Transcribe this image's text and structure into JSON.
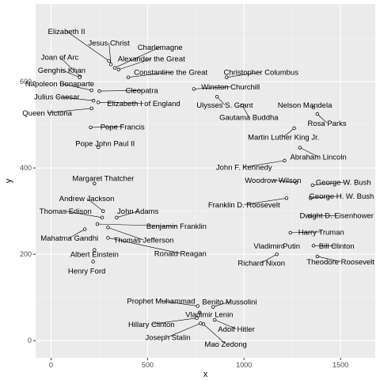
{
  "chart_data": {
    "type": "scatter",
    "xlabel": "x",
    "ylabel": "y",
    "xlim": [
      -80,
      1680
    ],
    "ylim": [
      -40,
      780
    ],
    "x_ticks": [
      0,
      500,
      1000,
      1500
    ],
    "y_ticks": [
      0,
      200,
      400,
      600
    ],
    "grid": true,
    "colors": {
      "panel_bg": "#ebebeb",
      "grid_major": "#ffffff",
      "grid_minor": "#f5f5f5",
      "point_fill": "#ffffff",
      "point_stroke": "#000000",
      "segment": "#000000"
    },
    "points": [
      {
        "name": "Elizabeth II",
        "x": 300,
        "y": 648,
        "lx": 80,
        "ly": 717
      },
      {
        "name": "Jesus Christ",
        "x": 310,
        "y": 640,
        "lx": 300,
        "ly": 690
      },
      {
        "name": "Charlemagne",
        "x": 330,
        "y": 632,
        "lx": 565,
        "ly": 680
      },
      {
        "name": "Joan of Arc",
        "x": 150,
        "y": 612,
        "lx": 45,
        "ly": 657
      },
      {
        "name": "Alexander the Great",
        "x": 350,
        "y": 628,
        "lx": 520,
        "ly": 653
      },
      {
        "name": "Genghis Khan",
        "x": 148,
        "y": 610,
        "lx": 55,
        "ly": 627
      },
      {
        "name": "Constantine the Great",
        "x": 400,
        "y": 610,
        "lx": 620,
        "ly": 622
      },
      {
        "name": "Christopher Columbus",
        "x": 910,
        "y": 610,
        "lx": 1088,
        "ly": 622
      },
      {
        "name": "Napoleon Bonaparte",
        "x": 210,
        "y": 580,
        "lx": 45,
        "ly": 596
      },
      {
        "name": "Winston Churchill",
        "x": 740,
        "y": 583,
        "lx": 930,
        "ly": 588
      },
      {
        "name": "Cleopatra",
        "x": 250,
        "y": 578,
        "lx": 470,
        "ly": 580
      },
      {
        "name": "Julius Caesar",
        "x": 220,
        "y": 556,
        "lx": 30,
        "ly": 565
      },
      {
        "name": "Elizabeth I of England",
        "x": 245,
        "y": 552,
        "lx": 480,
        "ly": 550
      },
      {
        "name": "Ulysses S. Grant",
        "x": 860,
        "y": 565,
        "lx": 900,
        "ly": 546
      },
      {
        "name": "Nelson Mandela",
        "x": 1360,
        "y": 540,
        "lx": 1315,
        "ly": 546
      },
      {
        "name": "Queen Victoria",
        "x": 210,
        "y": 538,
        "lx": -20,
        "ly": 528
      },
      {
        "name": "Gautama Buddha",
        "x": 990,
        "y": 545,
        "lx": 1025,
        "ly": 518
      },
      {
        "name": "Rosa Parks",
        "x": 1380,
        "y": 525,
        "lx": 1430,
        "ly": 504
      },
      {
        "name": "Pope Francis",
        "x": 205,
        "y": 494,
        "lx": 370,
        "ly": 496
      },
      {
        "name": "Martin Luther King Jr.",
        "x": 1260,
        "y": 492,
        "lx": 1205,
        "ly": 472
      },
      {
        "name": "Pope John Paul II",
        "x": 245,
        "y": 448,
        "lx": 280,
        "ly": 457
      },
      {
        "name": "Abraham Lincoln",
        "x": 1290,
        "y": 447,
        "lx": 1385,
        "ly": 426
      },
      {
        "name": "John F. Kennedy",
        "x": 1210,
        "y": 417,
        "lx": 1000,
        "ly": 402
      },
      {
        "name": "Woodrow Wilson",
        "x": 1270,
        "y": 366,
        "lx": 1150,
        "ly": 372
      },
      {
        "name": "George W. Bush",
        "x": 1355,
        "y": 360,
        "lx": 1515,
        "ly": 367
      },
      {
        "name": "Margaret Thatcher",
        "x": 225,
        "y": 364,
        "lx": 270,
        "ly": 376
      },
      {
        "name": "George H. W. Bush",
        "x": 1345,
        "y": 330,
        "lx": 1505,
        "ly": 335
      },
      {
        "name": "Franklin D. Roosevelt",
        "x": 1220,
        "y": 330,
        "lx": 1000,
        "ly": 315
      },
      {
        "name": "Andrew Jackson",
        "x": 270,
        "y": 300,
        "lx": 185,
        "ly": 330
      },
      {
        "name": "Thomas Edison",
        "x": 265,
        "y": 285,
        "lx": 75,
        "ly": 300
      },
      {
        "name": "John Adams",
        "x": 340,
        "y": 285,
        "lx": 450,
        "ly": 300
      },
      {
        "name": "Dwight D. Eisenhower",
        "x": 1340,
        "y": 288,
        "lx": 1480,
        "ly": 290
      },
      {
        "name": "Benjamin Franklin",
        "x": 240,
        "y": 270,
        "lx": 650,
        "ly": 265
      },
      {
        "name": "Harry Truman",
        "x": 1240,
        "y": 250,
        "lx": 1400,
        "ly": 252
      },
      {
        "name": "Mahatma Gandhi",
        "x": 175,
        "y": 258,
        "lx": 95,
        "ly": 238
      },
      {
        "name": "Thomas Jefferson",
        "x": 295,
        "y": 262,
        "lx": 480,
        "ly": 233
      },
      {
        "name": "Vladimir Putin",
        "x": 1200,
        "y": 218,
        "lx": 1170,
        "ly": 220
      },
      {
        "name": "Bill Clinton",
        "x": 1360,
        "y": 220,
        "lx": 1480,
        "ly": 220
      },
      {
        "name": "Albert Einstein",
        "x": 225,
        "y": 210,
        "lx": 225,
        "ly": 200
      },
      {
        "name": "Ronald Reagan",
        "x": 295,
        "y": 238,
        "lx": 670,
        "ly": 202
      },
      {
        "name": "Theodore Roosevelt",
        "x": 1380,
        "y": 195,
        "lx": 1500,
        "ly": 183
      },
      {
        "name": "Richard Nixon",
        "x": 1170,
        "y": 200,
        "lx": 1090,
        "ly": 180
      },
      {
        "name": "Henry Ford",
        "x": 218,
        "y": 183,
        "lx": 185,
        "ly": 162
      },
      {
        "name": "Prophet Muhammad",
        "x": 760,
        "y": 80,
        "lx": 570,
        "ly": 92
      },
      {
        "name": "Benito Mussolini",
        "x": 840,
        "y": 78,
        "lx": 925,
        "ly": 90
      },
      {
        "name": "Vladimir Lenin",
        "x": 770,
        "y": 65,
        "lx": 820,
        "ly": 61
      },
      {
        "name": "Hillary Clinton",
        "x": 755,
        "y": 52,
        "lx": 520,
        "ly": 38
      },
      {
        "name": "Adolf Hitler",
        "x": 848,
        "y": 48,
        "lx": 960,
        "ly": 27
      },
      {
        "name": "Joseph Stalin",
        "x": 775,
        "y": 40,
        "lx": 605,
        "ly": 8
      },
      {
        "name": "Mao Zedong",
        "x": 790,
        "y": 38,
        "lx": 905,
        "ly": -8
      }
    ]
  }
}
